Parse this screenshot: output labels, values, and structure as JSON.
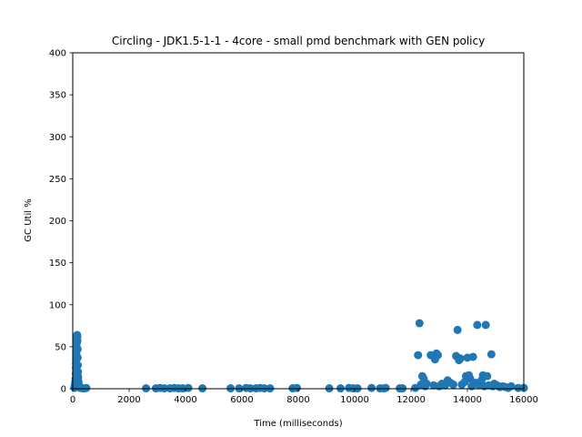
{
  "chart_data": {
    "type": "scatter",
    "title": "Circling - JDK1.5-1-1 - 4core -  small pmd benchmark with GEN policy",
    "xlabel": "Time (milliseconds)",
    "ylabel": "GC Util %",
    "xlim": [
      0,
      16000
    ],
    "ylim": [
      0,
      400
    ],
    "xticks": [
      "0",
      "2000",
      "4000",
      "6000",
      "8000",
      "10000",
      "12000",
      "14000",
      "16000"
    ],
    "yticks": [
      "0",
      "50",
      "100",
      "150",
      "200",
      "250",
      "300",
      "350",
      "400"
    ],
    "grid": false,
    "legend": "none",
    "marker_color": "#1f77b4",
    "series": [
      {
        "points": [
          [
            60,
            1
          ],
          [
            70,
            3
          ],
          [
            80,
            5
          ],
          [
            90,
            8
          ],
          [
            100,
            12
          ],
          [
            110,
            18
          ],
          [
            115,
            25
          ],
          [
            120,
            30
          ],
          [
            125,
            35
          ],
          [
            130,
            40
          ],
          [
            135,
            45
          ],
          [
            140,
            50
          ],
          [
            145,
            55
          ],
          [
            150,
            60
          ],
          [
            155,
            64
          ],
          [
            160,
            62
          ],
          [
            165,
            57
          ],
          [
            170,
            47
          ],
          [
            175,
            37
          ],
          [
            180,
            28
          ],
          [
            185,
            20
          ],
          [
            190,
            14
          ],
          [
            200,
            9
          ],
          [
            210,
            6
          ],
          [
            220,
            4
          ],
          [
            240,
            2
          ],
          [
            260,
            1
          ],
          [
            300,
            1
          ],
          [
            350,
            0.5
          ],
          [
            420,
            0.5
          ],
          [
            480,
            1
          ],
          [
            2600,
            0.5
          ],
          [
            2950,
            0.5
          ],
          [
            3100,
            1
          ],
          [
            3250,
            0.5
          ],
          [
            3450,
            0.5
          ],
          [
            3600,
            1
          ],
          [
            3750,
            0.5
          ],
          [
            3900,
            0.5
          ],
          [
            4100,
            1
          ],
          [
            4600,
            0.5
          ],
          [
            5600,
            0.5
          ],
          [
            5900,
            0.5
          ],
          [
            6150,
            1
          ],
          [
            6300,
            0.5
          ],
          [
            6500,
            0.5
          ],
          [
            6650,
            1
          ],
          [
            6800,
            0.5
          ],
          [
            7000,
            0.5
          ],
          [
            7800,
            0.5
          ],
          [
            7950,
            1
          ],
          [
            9100,
            0.5
          ],
          [
            9500,
            0.5
          ],
          [
            9800,
            1
          ],
          [
            9950,
            0.5
          ],
          [
            10100,
            0.5
          ],
          [
            10600,
            1
          ],
          [
            10900,
            0.5
          ],
          [
            11050,
            0.5
          ],
          [
            11100,
            1
          ],
          [
            11600,
            0.5
          ],
          [
            11700,
            0.5
          ],
          [
            12150,
            1
          ],
          [
            12250,
            40
          ],
          [
            12300,
            78
          ],
          [
            12350,
            5
          ],
          [
            12400,
            15
          ],
          [
            12450,
            12
          ],
          [
            12500,
            3
          ],
          [
            12550,
            6
          ],
          [
            12700,
            40
          ],
          [
            12800,
            4
          ],
          [
            12850,
            35
          ],
          [
            12900,
            42
          ],
          [
            12950,
            40
          ],
          [
            13000,
            3
          ],
          [
            13100,
            6
          ],
          [
            13200,
            4
          ],
          [
            13300,
            10
          ],
          [
            13400,
            7
          ],
          [
            13500,
            5
          ],
          [
            13600,
            39
          ],
          [
            13650,
            70
          ],
          [
            13700,
            34
          ],
          [
            13750,
            36
          ],
          [
            13800,
            5
          ],
          [
            13900,
            8
          ],
          [
            13950,
            15
          ],
          [
            14000,
            37
          ],
          [
            14050,
            16
          ],
          [
            14100,
            12
          ],
          [
            14150,
            3
          ],
          [
            14200,
            38
          ],
          [
            14300,
            7
          ],
          [
            14350,
            76
          ],
          [
            14400,
            5
          ],
          [
            14500,
            10
          ],
          [
            14550,
            16
          ],
          [
            14600,
            3
          ],
          [
            14650,
            76
          ],
          [
            14700,
            15
          ],
          [
            14750,
            4
          ],
          [
            14850,
            41
          ],
          [
            14900,
            3
          ],
          [
            14950,
            6
          ],
          [
            15050,
            4
          ],
          [
            15150,
            2
          ],
          [
            15250,
            3
          ],
          [
            15350,
            2
          ],
          [
            15450,
            1
          ],
          [
            15550,
            3
          ],
          [
            15800,
            1
          ],
          [
            16000,
            1
          ]
        ]
      }
    ]
  }
}
